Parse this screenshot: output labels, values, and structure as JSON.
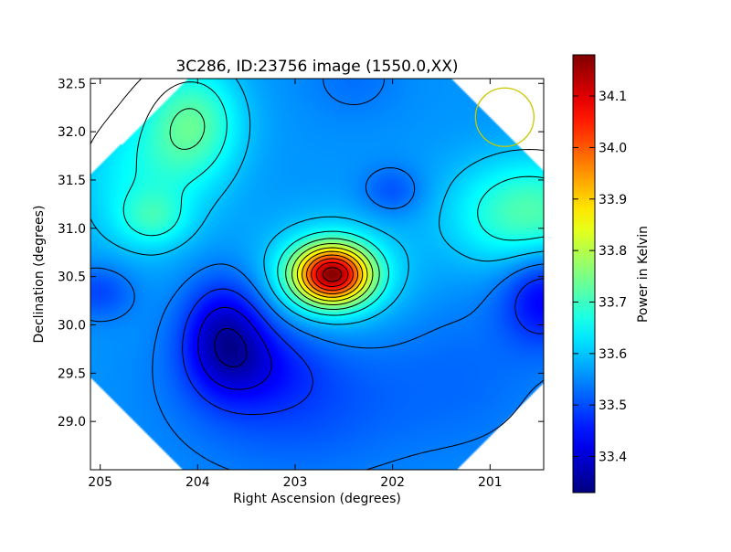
{
  "chart_data": {
    "type": "heatmap",
    "title": "3C286, ID:23756 image (1550.0,XX)",
    "xlabel": "Right Ascension (degrees)",
    "ylabel": "Declination (degrees)",
    "xlim": [
      205.1,
      200.45
    ],
    "ylim": [
      28.5,
      32.55
    ],
    "x_ticks": [
      {
        "value": 205,
        "label": "205"
      },
      {
        "value": 204,
        "label": "204"
      },
      {
        "value": 203,
        "label": "203"
      },
      {
        "value": 202,
        "label": "202"
      },
      {
        "value": 201,
        "label": "201"
      }
    ],
    "y_ticks": [
      {
        "value": 29.0,
        "label": "29.0"
      },
      {
        "value": 29.5,
        "label": "29.5"
      },
      {
        "value": 30.0,
        "label": "30.0"
      },
      {
        "value": 30.5,
        "label": "30.5"
      },
      {
        "value": 31.0,
        "label": "31.0"
      },
      {
        "value": 31.5,
        "label": "31.5"
      },
      {
        "value": 32.0,
        "label": "32.0"
      },
      {
        "value": 32.5,
        "label": "32.5"
      }
    ],
    "colorbar": {
      "label": "Power in Kelvin",
      "range": [
        33.33,
        34.18
      ],
      "colormap": "jet",
      "ticks": [
        {
          "value": 33.4,
          "label": "33.4"
        },
        {
          "value": 33.5,
          "label": "33.5"
        },
        {
          "value": 33.6,
          "label": "33.6"
        },
        {
          "value": 33.7,
          "label": "33.7"
        },
        {
          "value": 33.8,
          "label": "33.8"
        },
        {
          "value": 33.9,
          "label": "33.9"
        },
        {
          "value": 34.0,
          "label": "34.0"
        },
        {
          "value": 34.1,
          "label": "34.1"
        }
      ]
    },
    "field_extent": {
      "center_ra": 202.75,
      "center_dec": 30.5,
      "half_diagonal_deg": 3.4
    },
    "background_level": 33.56,
    "features": [
      {
        "kind": "peak",
        "ra": 202.62,
        "dec": 30.52,
        "value": 34.18
      },
      {
        "kind": "trough",
        "ra": 203.72,
        "dec": 29.92,
        "value": 33.33
      },
      {
        "kind": "high",
        "ra": 204.05,
        "dec": 32.1,
        "value": 33.72
      },
      {
        "kind": "high",
        "ra": 200.6,
        "dec": 31.15,
        "value": 33.73
      },
      {
        "kind": "high",
        "ra": 204.5,
        "dec": 31.1,
        "value": 33.68
      },
      {
        "kind": "low",
        "ra": 202.0,
        "dec": 31.38,
        "value": 33.5
      },
      {
        "kind": "low",
        "ra": 200.45,
        "dec": 30.3,
        "value": 33.43
      },
      {
        "kind": "low",
        "ra": 202.95,
        "dec": 29.1,
        "value": 33.46
      },
      {
        "kind": "low",
        "ra": 205.0,
        "dec": 30.35,
        "value": 33.47
      }
    ],
    "beam_marker": {
      "ra": 200.85,
      "dec": 32.15,
      "radius_deg": 0.3,
      "color": "#c8c800"
    },
    "contour_color": "#000000",
    "grid": false,
    "legend": false
  }
}
